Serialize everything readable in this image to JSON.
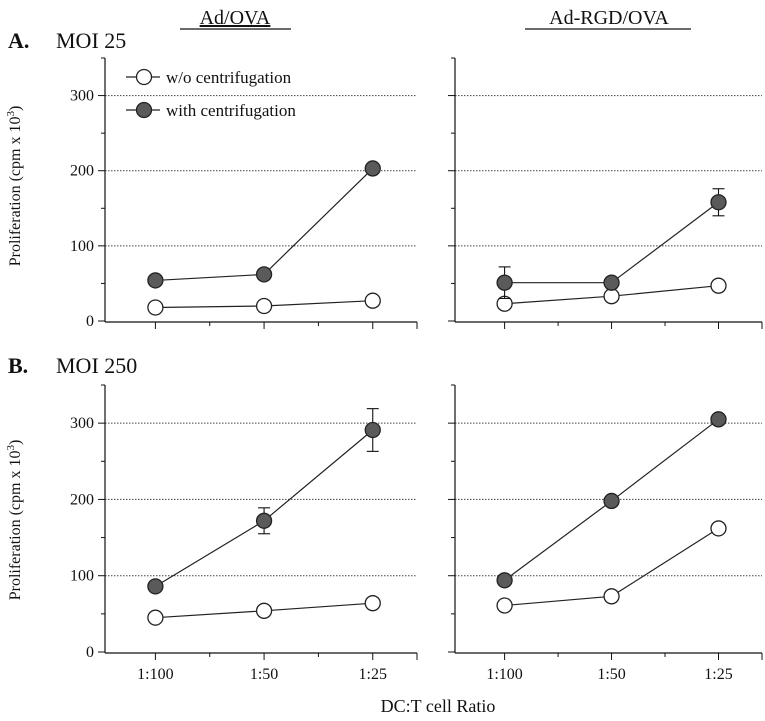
{
  "figure": {
    "column_titles": [
      "Ad/OVA",
      "Ad-RGD/OVA"
    ],
    "x_axis_label": "DC:T cell Ratio",
    "y_axis_label": "Proliferation (cpm x 10",
    "y_axis_label_sup": "3",
    "y_axis_label_tail": ")",
    "row_labels": [
      {
        "letter": "A.",
        "title": "MOI 25"
      },
      {
        "letter": "B.",
        "title": "MOI 250"
      }
    ],
    "legend": [
      {
        "label": "w/o centrifugation",
        "marker": "open-circle"
      },
      {
        "label": "with centrifugation",
        "marker": "filled-circle"
      }
    ],
    "colors": {
      "filled_marker": "#5a5a5a",
      "open_marker": "#ffffff",
      "line": "#222222",
      "grid": "#444444"
    }
  },
  "chart_data": [
    {
      "type": "line",
      "panel": "A-left",
      "row_title": "MOI 25",
      "column_title": "Ad/OVA",
      "categories": [
        "1:100",
        "1:50",
        "1:25"
      ],
      "ylim": [
        0,
        350
      ],
      "yticks": [
        0,
        100,
        200,
        300
      ],
      "grid": true,
      "show_x_tick_labels": false,
      "show_y_tick_labels": true,
      "legend_position": "top-left",
      "series": [
        {
          "name": "w/o centrifugation",
          "values": [
            18,
            20,
            27
          ],
          "errors": [
            0,
            0,
            0
          ]
        },
        {
          "name": "with centrifugation",
          "values": [
            54,
            62,
            203
          ],
          "errors": [
            0,
            0,
            0
          ]
        }
      ]
    },
    {
      "type": "line",
      "panel": "A-right",
      "row_title": "MOI 25",
      "column_title": "Ad-RGD/OVA",
      "categories": [
        "1:100",
        "1:50",
        "1:25"
      ],
      "ylim": [
        0,
        350
      ],
      "yticks": [
        0,
        100,
        200,
        300
      ],
      "grid": true,
      "show_x_tick_labels": false,
      "show_y_tick_labels": false,
      "series": [
        {
          "name": "w/o centrifugation",
          "values": [
            23,
            33,
            47
          ],
          "errors": [
            0,
            0,
            0
          ]
        },
        {
          "name": "with centrifugation",
          "values": [
            51,
            51,
            158
          ],
          "errors": [
            21,
            0,
            18
          ]
        }
      ]
    },
    {
      "type": "line",
      "panel": "B-left",
      "row_title": "MOI 250",
      "column_title": "Ad/OVA",
      "categories": [
        "1:100",
        "1:50",
        "1:25"
      ],
      "ylim": [
        0,
        350
      ],
      "yticks": [
        0,
        100,
        200,
        300
      ],
      "grid": true,
      "show_x_tick_labels": true,
      "show_y_tick_labels": true,
      "series": [
        {
          "name": "w/o centrifugation",
          "values": [
            45,
            54,
            64
          ],
          "errors": [
            0,
            0,
            0
          ]
        },
        {
          "name": "with centrifugation",
          "values": [
            86,
            172,
            291
          ],
          "errors": [
            0,
            17,
            28
          ]
        }
      ]
    },
    {
      "type": "line",
      "panel": "B-right",
      "row_title": "MOI 250",
      "column_title": "Ad-RGD/OVA",
      "categories": [
        "1:100",
        "1:50",
        "1:25"
      ],
      "ylim": [
        0,
        350
      ],
      "yticks": [
        0,
        100,
        200,
        300
      ],
      "grid": true,
      "show_x_tick_labels": true,
      "show_y_tick_labels": false,
      "series": [
        {
          "name": "w/o centrifugation",
          "values": [
            61,
            73,
            162
          ],
          "errors": [
            0,
            0,
            0
          ]
        },
        {
          "name": "with centrifugation",
          "values": [
            94,
            198,
            305
          ],
          "errors": [
            0,
            0,
            0
          ]
        }
      ]
    }
  ]
}
